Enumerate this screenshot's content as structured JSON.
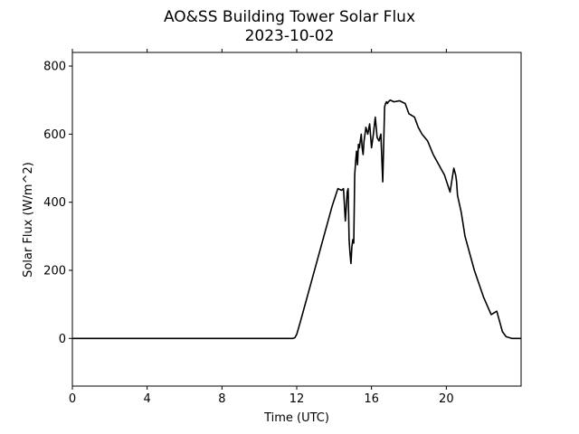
{
  "chart_data": {
    "type": "line",
    "title": "AO&SS Building Tower Solar Flux",
    "subtitle": "2023-10-02",
    "xlabel": "Time (UTC)",
    "ylabel": "Solar Flux (W/m^2)",
    "xlim": [
      0,
      24
    ],
    "ylim": [
      -140,
      840
    ],
    "xticks": [
      0,
      4,
      8,
      12,
      16,
      20
    ],
    "yticks": [
      0,
      200,
      400,
      600,
      800
    ],
    "grid": false,
    "legend": "none",
    "line_color": "#000000",
    "series": [
      {
        "x": [
          0,
          11.8,
          11.9,
          12.0,
          12.2,
          12.5,
          12.8,
          13.2,
          13.6,
          13.9,
          14.2,
          14.4,
          14.5,
          14.6,
          14.7,
          14.75,
          14.8,
          14.85,
          14.9,
          14.95,
          15.0,
          15.05,
          15.1,
          15.15,
          15.2,
          15.25,
          15.3,
          15.35,
          15.4,
          15.45,
          15.5,
          15.55,
          15.6,
          15.7,
          15.8,
          15.9,
          16.0,
          16.1,
          16.2,
          16.3,
          16.4,
          16.5,
          16.6,
          16.7,
          16.75,
          16.8,
          16.85,
          16.9,
          17.0,
          17.2,
          17.5,
          17.8,
          18.0,
          18.3,
          18.5,
          18.7,
          19.0,
          19.3,
          19.6,
          19.9,
          20.2,
          20.4,
          20.5,
          20.55,
          20.6,
          20.8,
          21.0,
          21.5,
          22.0,
          22.4,
          22.7,
          22.8,
          22.9,
          23.0,
          23.2,
          23.5,
          23.6,
          23.8,
          24.0
        ],
        "y": [
          0,
          0,
          2,
          12,
          50,
          110,
          170,
          250,
          330,
          390,
          440,
          435,
          440,
          345,
          430,
          440,
          290,
          250,
          220,
          270,
          290,
          280,
          480,
          520,
          550,
          510,
          570,
          560,
          580,
          600,
          560,
          540,
          580,
          620,
          600,
          630,
          560,
          600,
          650,
          590,
          580,
          600,
          460,
          680,
          690,
          695,
          690,
          695,
          700,
          695,
          698,
          690,
          660,
          650,
          620,
          600,
          580,
          540,
          510,
          480,
          430,
          500,
          480,
          460,
          420,
          370,
          300,
          200,
          120,
          70,
          80,
          60,
          40,
          20,
          5,
          0,
          0,
          0,
          0
        ]
      }
    ]
  }
}
